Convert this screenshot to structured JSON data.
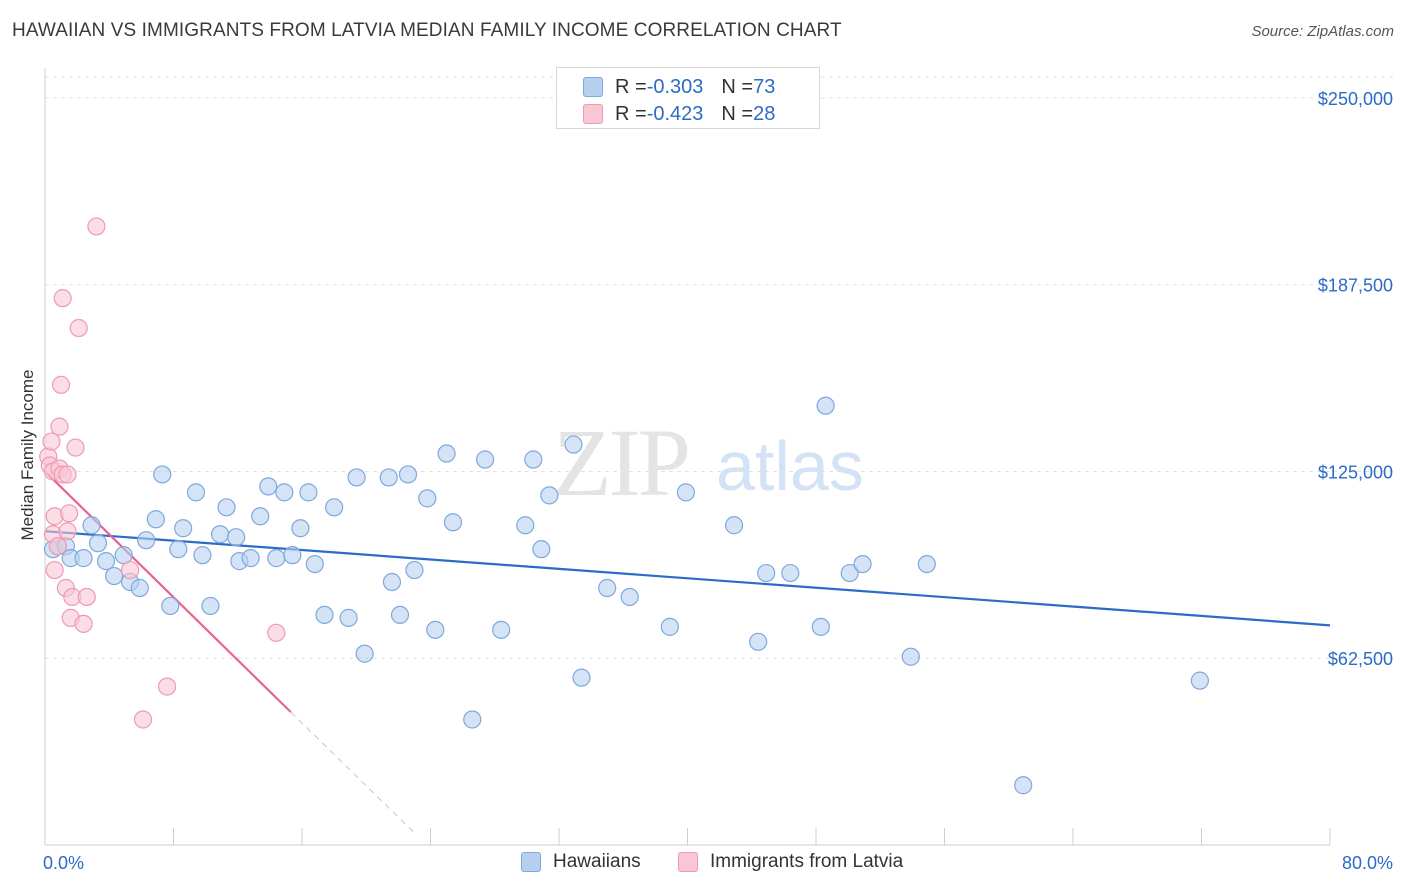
{
  "title": "HAWAIIAN VS IMMIGRANTS FROM LATVIA MEDIAN FAMILY INCOME CORRELATION CHART",
  "source": "Source: ZipAtlas.com",
  "watermark": {
    "zip": "ZIP",
    "atlas": "atlas"
  },
  "colors": {
    "blue": "#2c6bc6",
    "blue_fill": "#b8d0f0",
    "blue_stroke": "#7fa8dc",
    "pink": "#e8638f",
    "pink_fill": "#f9c6d4",
    "pink_stroke": "#ee9ab4",
    "axis_text": "#2c6bc6",
    "grid": "#e2e2e2"
  },
  "legend": {
    "rows": [
      {
        "r_label": "R = ",
        "r_value": "-0.303",
        "n_label": "N = ",
        "n_value": "73"
      },
      {
        "r_label": "R = ",
        "r_value": "-0.423",
        "n_label": "N = ",
        "n_value": "28"
      }
    ]
  },
  "bottom_legend": [
    "Hawaiians",
    "Immigrants from Latvia"
  ],
  "chart_data": {
    "type": "scatter",
    "title": "HAWAIIAN VS IMMIGRANTS FROM LATVIA MEDIAN FAMILY INCOME CORRELATION CHART",
    "xlabel": "",
    "ylabel": "Median Family Income",
    "xlim": [
      0,
      80
    ],
    "ylim": [
      0,
      257000
    ],
    "x_tick_labels": [
      "0.0%",
      "80.0%"
    ],
    "y_ticks": [
      62500,
      125000,
      187500,
      250000
    ],
    "y_tick_labels": [
      "$62,500",
      "$125,000",
      "$187,500",
      "$250,000"
    ],
    "grid": true,
    "series": [
      {
        "name": "Hawaiians",
        "R": -0.303,
        "N": 73,
        "trend": {
          "x": [
            0,
            80
          ],
          "y": [
            105000,
            73500
          ]
        },
        "points": [
          [
            0.5,
            99000
          ],
          [
            0.8,
            100000
          ],
          [
            1.3,
            100000
          ],
          [
            1.6,
            96000
          ],
          [
            2.4,
            96000
          ],
          [
            2.9,
            107000
          ],
          [
            3.3,
            101000
          ],
          [
            3.8,
            95000
          ],
          [
            4.3,
            90000
          ],
          [
            4.9,
            97000
          ],
          [
            5.3,
            88000
          ],
          [
            5.9,
            86000
          ],
          [
            6.3,
            102000
          ],
          [
            6.9,
            109000
          ],
          [
            7.3,
            124000
          ],
          [
            7.8,
            80000
          ],
          [
            8.3,
            99000
          ],
          [
            8.6,
            106000
          ],
          [
            9.4,
            118000
          ],
          [
            9.8,
            97000
          ],
          [
            10.3,
            80000
          ],
          [
            10.9,
            104000
          ],
          [
            11.3,
            113000
          ],
          [
            11.9,
            103000
          ],
          [
            12.1,
            95000
          ],
          [
            12.8,
            96000
          ],
          [
            13.4,
            110000
          ],
          [
            13.9,
            120000
          ],
          [
            14.4,
            96000
          ],
          [
            14.9,
            118000
          ],
          [
            15.4,
            97000
          ],
          [
            15.9,
            106000
          ],
          [
            16.4,
            118000
          ],
          [
            16.8,
            94000
          ],
          [
            17.4,
            77000
          ],
          [
            18.0,
            113000
          ],
          [
            18.9,
            76000
          ],
          [
            19.4,
            123000
          ],
          [
            19.9,
            64000
          ],
          [
            21.4,
            123000
          ],
          [
            21.6,
            88000
          ],
          [
            22.1,
            77000
          ],
          [
            22.6,
            124000
          ],
          [
            23.0,
            92000
          ],
          [
            23.8,
            116000
          ],
          [
            24.3,
            72000
          ],
          [
            25.0,
            131000
          ],
          [
            25.4,
            108000
          ],
          [
            26.6,
            42000
          ],
          [
            27.4,
            129000
          ],
          [
            28.4,
            72000
          ],
          [
            29.9,
            107000
          ],
          [
            30.4,
            129000
          ],
          [
            30.9,
            99000
          ],
          [
            31.4,
            117000
          ],
          [
            32.9,
            134000
          ],
          [
            33.4,
            56000
          ],
          [
            35.0,
            86000
          ],
          [
            36.4,
            83000
          ],
          [
            38.9,
            73000
          ],
          [
            39.9,
            118000
          ],
          [
            42.9,
            107000
          ],
          [
            44.4,
            68000
          ],
          [
            44.9,
            91000
          ],
          [
            46.4,
            91000
          ],
          [
            48.3,
            73000
          ],
          [
            48.6,
            147000
          ],
          [
            50.1,
            91000
          ],
          [
            50.9,
            94000
          ],
          [
            53.9,
            63000
          ],
          [
            54.9,
            94000
          ],
          [
            60.9,
            20000
          ],
          [
            71.9,
            55000
          ]
        ]
      },
      {
        "name": "Immigrants from Latvia",
        "R": -0.423,
        "N": 28,
        "trend": {
          "x": [
            0,
            15.3
          ],
          "y": [
            125000,
            44500
          ]
        },
        "trend_dash": {
          "x": [
            15.3,
            23.1
          ],
          "y": [
            44500,
            3500
          ]
        },
        "points": [
          [
            0.2,
            130000
          ],
          [
            0.3,
            127000
          ],
          [
            0.4,
            135000
          ],
          [
            0.5,
            125000
          ],
          [
            0.5,
            104000
          ],
          [
            0.6,
            92000
          ],
          [
            0.6,
            110000
          ],
          [
            0.8,
            100000
          ],
          [
            0.9,
            126000
          ],
          [
            0.9,
            140000
          ],
          [
            1.0,
            154000
          ],
          [
            1.1,
            183000
          ],
          [
            1.1,
            124000
          ],
          [
            1.3,
            86000
          ],
          [
            1.4,
            105000
          ],
          [
            1.4,
            124000
          ],
          [
            1.5,
            111000
          ],
          [
            1.6,
            76000
          ],
          [
            1.7,
            83000
          ],
          [
            1.9,
            133000
          ],
          [
            2.1,
            173000
          ],
          [
            2.4,
            74000
          ],
          [
            2.6,
            83000
          ],
          [
            3.2,
            207000
          ],
          [
            5.3,
            92000
          ],
          [
            6.1,
            42000
          ],
          [
            7.6,
            53000
          ],
          [
            14.4,
            71000
          ]
        ]
      }
    ]
  }
}
